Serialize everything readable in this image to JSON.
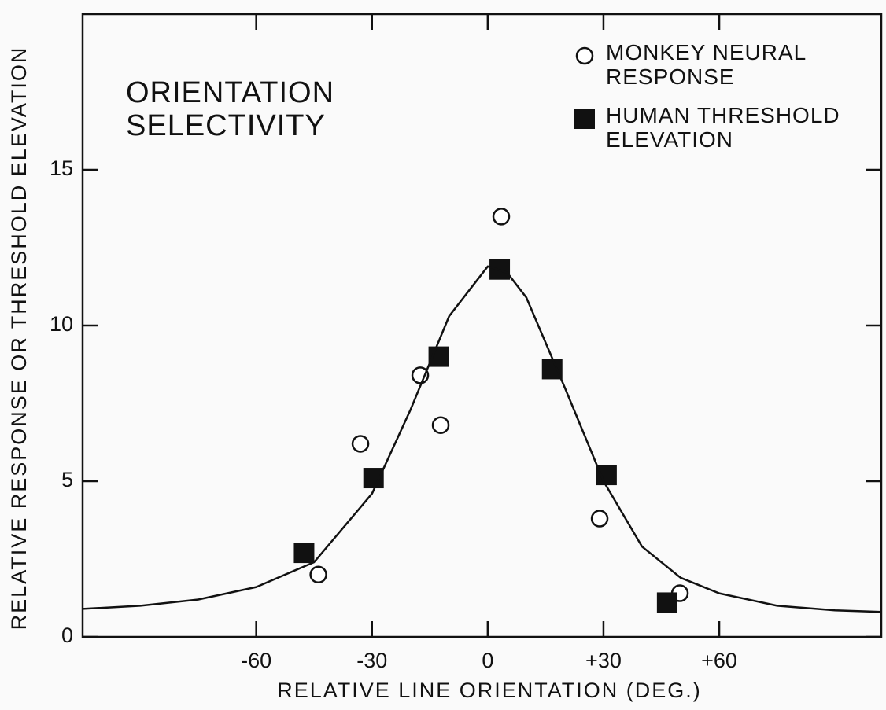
{
  "chart_data": {
    "type": "scatter",
    "title": "ORIENTATION\nSELECTIVITY",
    "x_label": "RELATIVE LINE ORIENTATION (DEG.)",
    "y_label": "RELATIVE RESPONSE OR THRESHOLD ELEVATION",
    "xlim": [
      -105,
      102
    ],
    "ylim": [
      0,
      20
    ],
    "xticks": [
      -60,
      -30,
      0,
      {
        "value": 30,
        "label": "+30"
      },
      {
        "value": 60,
        "label": "+60"
      }
    ],
    "yticks": [
      0,
      5,
      10,
      15
    ],
    "legend": "upper right",
    "series": [
      {
        "name": "MONKEY NEURAL\nRESPONSE",
        "marker": "circle",
        "color": "#111111",
        "x": [
          -43.9,
          -33,
          -17.5,
          -12.2,
          3.5,
          29,
          49.8
        ],
        "values": [
          2.0,
          6.2,
          8.4,
          6.8,
          13.5,
          3.8,
          1.4
        ]
      },
      {
        "name": "HUMAN THRESHOLD\nELEVATION",
        "marker": "square",
        "color": "#111111",
        "x": [
          -47.6,
          -29.6,
          -12.7,
          3.1,
          16.7,
          30.8,
          46.5
        ],
        "values": [
          2.7,
          5.1,
          9.0,
          11.8,
          8.6,
          5.2,
          1.1
        ]
      },
      {
        "marker": "line",
        "color": "#111111",
        "x": [
          -105,
          -90,
          -75,
          -60,
          -45,
          -30,
          -20,
          -10,
          0,
          5,
          10,
          20,
          30,
          40,
          50,
          60,
          75,
          90,
          102
        ],
        "values": [
          0.9,
          1.0,
          1.2,
          1.6,
          2.4,
          4.6,
          7.3,
          10.3,
          11.9,
          11.7,
          10.9,
          8.0,
          5.0,
          2.9,
          1.9,
          1.4,
          1.0,
          0.85,
          0.8
        ]
      }
    ]
  }
}
